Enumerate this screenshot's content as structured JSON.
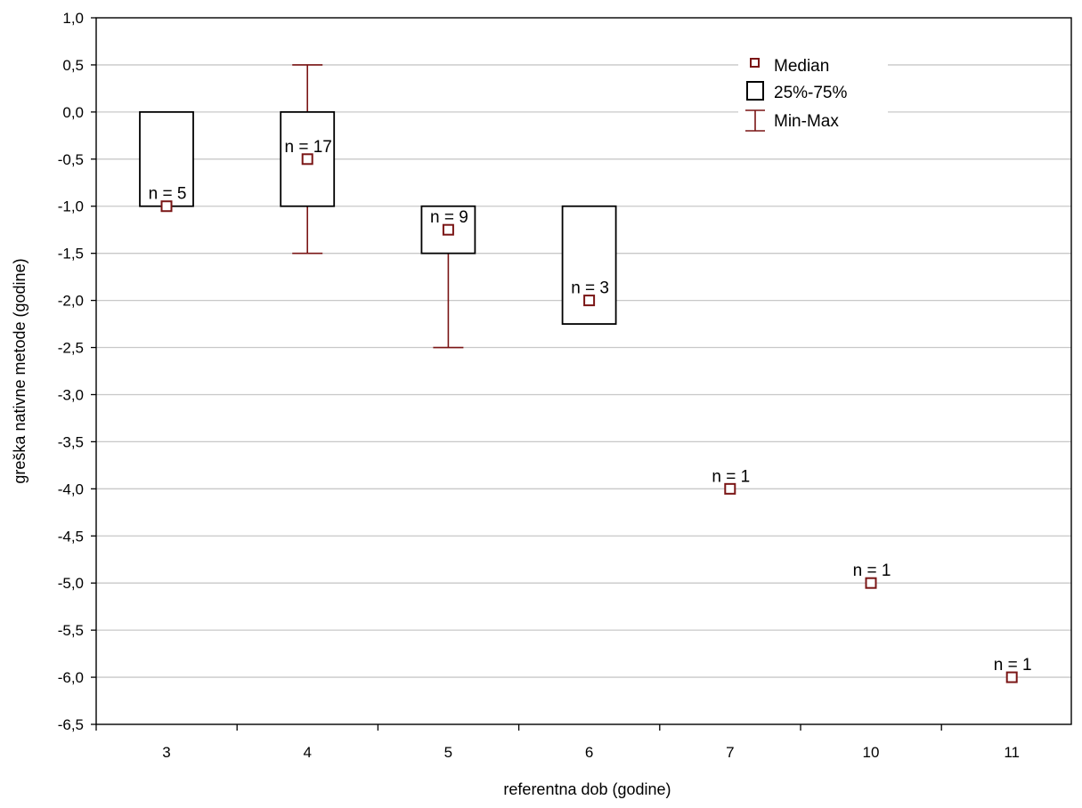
{
  "chart_data": {
    "type": "box",
    "title": "",
    "xlabel": "referentna dob (godine)",
    "ylabel": "greška nativne metode (godine)",
    "ylim": [
      -6.5,
      1.0
    ],
    "yticks": [
      "1,0",
      "0,5",
      "0,0",
      "-0,5",
      "-1,0",
      "-1,5",
      "-2,0",
      "-2,5",
      "-3,0",
      "-3,5",
      "-4,0",
      "-4,5",
      "-5,0",
      "-5,5",
      "-6,0",
      "-6,5"
    ],
    "ytick_values": [
      1.0,
      0.5,
      0.0,
      -0.5,
      -1.0,
      -1.5,
      -2.0,
      -2.5,
      -3.0,
      -3.5,
      -4.0,
      -4.5,
      -5.0,
      -5.5,
      -6.0,
      -6.5
    ],
    "categories": [
      "3",
      "4",
      "5",
      "6",
      "7",
      "10",
      "11"
    ],
    "grid": "horizontal",
    "legend_position": "top-right",
    "legend": [
      "Median",
      "25%-75%",
      "Min-Max"
    ],
    "colors": {
      "median": "#7a1515",
      "whisker": "#7a1515",
      "box": "#000000",
      "grid": "#c8c8c8"
    },
    "boxes": [
      {
        "category": "3",
        "median": -1.0,
        "q1": -1.0,
        "q3": 0.0,
        "min": -1.0,
        "max": 0.0,
        "n_label": "n = 5"
      },
      {
        "category": "4",
        "median": -0.5,
        "q1": -1.0,
        "q3": 0.0,
        "min": -1.5,
        "max": 0.5,
        "n_label": "n = 17"
      },
      {
        "category": "5",
        "median": -1.25,
        "q1": -1.5,
        "q3": -1.0,
        "min": -2.5,
        "max": -1.0,
        "n_label": "n = 9"
      },
      {
        "category": "6",
        "median": -2.0,
        "q1": -2.25,
        "q3": -1.0,
        "min": -2.25,
        "max": -1.0,
        "n_label": "n = 3"
      },
      {
        "category": "7",
        "median": -4.0,
        "q1": -4.0,
        "q3": -4.0,
        "min": -4.0,
        "max": -4.0,
        "n_label": "n = 1"
      },
      {
        "category": "10",
        "median": -5.0,
        "q1": -5.0,
        "q3": -5.0,
        "min": -5.0,
        "max": -5.0,
        "n_label": "n = 1"
      },
      {
        "category": "11",
        "median": -6.0,
        "q1": -6.0,
        "q3": -6.0,
        "min": -6.0,
        "max": -6.0,
        "n_label": "n = 1"
      }
    ]
  }
}
